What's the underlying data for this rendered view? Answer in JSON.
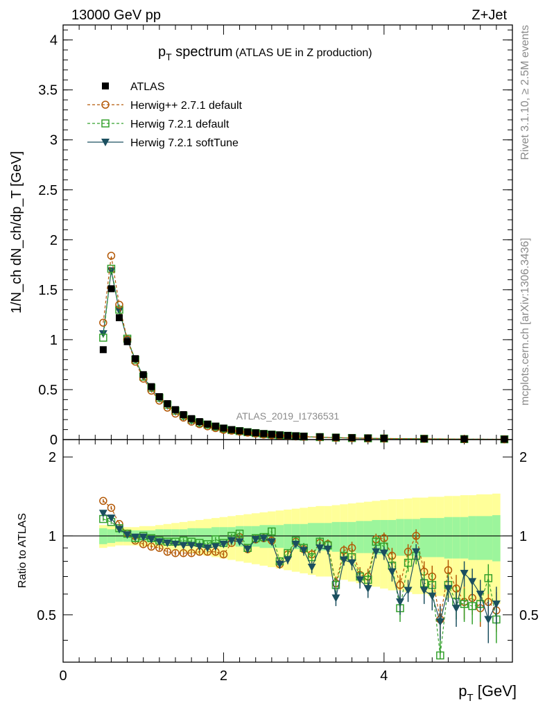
{
  "header": {
    "left": "13000 GeV pp",
    "right": "Z+Jet"
  },
  "side_labels": {
    "rivet": "Rivet 3.1.10, ≥ 2.5M events",
    "mcplots": "mcplots.cern.ch [arXiv:1306.3436]"
  },
  "colors": {
    "atlas": "#000000",
    "herwigpp": "#b35806",
    "herwig721_default": "#33a02c",
    "herwig721_soft": "#1b4f5f",
    "band_inner": "#9cf59c",
    "band_outer": "#ffff99"
  },
  "chart_data": [
    {
      "type": "scatter",
      "panel": "main",
      "title_main": "p",
      "title_sub": "T",
      "title_rest": " spectrum",
      "title_paren": "(ATLAS UE in Z production)",
      "analysis_id": "ATLAS_2019_I1736531",
      "ylabel": "1/N_ch dN_ch/dp_T [GeV]",
      "xlim": [
        0,
        5.6
      ],
      "ylim": [
        0,
        4.15
      ],
      "yticks": [
        "0",
        "0.5",
        "1",
        "1.5",
        "2",
        "2.5",
        "3",
        "3.5",
        "4"
      ],
      "legend_position": "top-left",
      "x": [
        0.5,
        0.6,
        0.7,
        0.8,
        0.9,
        1.0,
        1.1,
        1.2,
        1.3,
        1.4,
        1.5,
        1.6,
        1.7,
        1.8,
        1.9,
        2.0,
        2.1,
        2.2,
        2.3,
        2.4,
        2.5,
        2.6,
        2.7,
        2.8,
        2.9,
        3.0,
        3.2,
        3.4,
        3.6,
        3.8,
        4.0,
        4.5,
        5.0,
        5.5
      ],
      "series": [
        {
          "name": "ATLAS",
          "marker": "square-filled",
          "values": [
            0.9,
            1.51,
            1.22,
            0.98,
            0.81,
            0.65,
            0.53,
            0.43,
            0.36,
            0.3,
            0.25,
            0.21,
            0.18,
            0.155,
            0.135,
            0.115,
            0.1,
            0.088,
            0.077,
            0.068,
            0.06,
            0.053,
            0.047,
            0.042,
            0.038,
            0.034,
            0.028,
            0.023,
            0.019,
            0.016,
            0.013,
            0.009,
            0.006,
            0.004
          ]
        },
        {
          "name": "Herwig++ 2.7.1 default",
          "marker": "circle-open",
          "values": [
            1.17,
            1.84,
            1.35,
            1.0,
            0.78,
            0.61,
            0.49,
            0.39,
            0.32,
            0.26,
            0.22,
            0.18,
            0.155,
            0.133,
            0.115,
            0.098,
            0.09,
            0.08,
            0.07,
            0.06,
            0.05,
            0.045,
            0.04,
            0.035,
            0.032,
            0.029,
            0.024,
            0.019,
            0.016,
            0.013,
            0.011,
            0.008,
            0.005,
            0.003
          ]
        },
        {
          "name": "Herwig 7.2.1 default",
          "marker": "square-open",
          "values": [
            1.02,
            1.71,
            1.3,
            1.01,
            0.8,
            0.63,
            0.52,
            0.42,
            0.35,
            0.29,
            0.24,
            0.2,
            0.17,
            0.15,
            0.13,
            0.11,
            0.095,
            0.085,
            0.074,
            0.065,
            0.056,
            0.05,
            0.043,
            0.038,
            0.034,
            0.03,
            0.025,
            0.02,
            0.016,
            0.013,
            0.011,
            0.008,
            0.005,
            0.003
          ]
        },
        {
          "name": "Herwig 7.2.1 softTune",
          "marker": "triangle-down-filled",
          "values": [
            1.06,
            1.69,
            1.29,
            1.0,
            0.8,
            0.63,
            0.51,
            0.41,
            0.34,
            0.28,
            0.23,
            0.19,
            0.165,
            0.145,
            0.125,
            0.105,
            0.092,
            0.082,
            0.072,
            0.063,
            0.055,
            0.048,
            0.042,
            0.037,
            0.033,
            0.029,
            0.024,
            0.019,
            0.015,
            0.012,
            0.01,
            0.007,
            0.004,
            0.003
          ]
        }
      ]
    },
    {
      "type": "scatter",
      "panel": "ratio",
      "ylabel": "Ratio to ATLAS",
      "xlabel_main": "p",
      "xlabel_sub": "T",
      "xlabel_rest": " [GeV]",
      "xlim": [
        0,
        5.6
      ],
      "xticks": [
        "0",
        "2",
        "4"
      ],
      "ylim": [
        0.33,
        2.33
      ],
      "yticks": [
        "0.5",
        "1",
        "2"
      ],
      "x": [
        0.5,
        0.6,
        0.7,
        0.8,
        0.9,
        1.0,
        1.1,
        1.2,
        1.3,
        1.4,
        1.5,
        1.6,
        1.7,
        1.8,
        1.9,
        2.0,
        2.1,
        2.2,
        2.3,
        2.4,
        2.5,
        2.6,
        2.7,
        2.8,
        2.9,
        3.0,
        3.1,
        3.2,
        3.3,
        3.4,
        3.5,
        3.6,
        3.7,
        3.8,
        3.9,
        4.0,
        4.1,
        4.2,
        4.3,
        4.4,
        4.5,
        4.6,
        4.7,
        4.8,
        4.9,
        5.0,
        5.1,
        5.2,
        5.3,
        5.4
      ],
      "band_inner": [
        0.07,
        0.06,
        0.05,
        0.05,
        0.05,
        0.05,
        0.05,
        0.06,
        0.06,
        0.06,
        0.06,
        0.07,
        0.07,
        0.07,
        0.08,
        0.08,
        0.08,
        0.09,
        0.09,
        0.09,
        0.1,
        0.1,
        0.1,
        0.11,
        0.11,
        0.11,
        0.12,
        0.12,
        0.12,
        0.13,
        0.13,
        0.13,
        0.14,
        0.14,
        0.15,
        0.15,
        0.15,
        0.16,
        0.16,
        0.16,
        0.17,
        0.17,
        0.17,
        0.18,
        0.18,
        0.18,
        0.19,
        0.19,
        0.19,
        0.2
      ],
      "band_outer": [
        0.1,
        0.09,
        0.08,
        0.08,
        0.08,
        0.09,
        0.09,
        0.1,
        0.11,
        0.12,
        0.13,
        0.14,
        0.15,
        0.16,
        0.17,
        0.18,
        0.19,
        0.2,
        0.21,
        0.22,
        0.23,
        0.24,
        0.25,
        0.26,
        0.27,
        0.28,
        0.29,
        0.3,
        0.3,
        0.31,
        0.32,
        0.33,
        0.34,
        0.35,
        0.36,
        0.37,
        0.38,
        0.38,
        0.39,
        0.4,
        0.4,
        0.41,
        0.41,
        0.42,
        0.42,
        0.43,
        0.43,
        0.44,
        0.44,
        0.45
      ],
      "series": [
        {
          "name": "Herwig++ 2.7.1 default",
          "marker": "circle-open",
          "values": [
            1.36,
            1.28,
            1.11,
            1.02,
            0.96,
            0.93,
            0.91,
            0.9,
            0.87,
            0.86,
            0.86,
            0.86,
            0.87,
            0.87,
            0.87,
            0.85,
            0.94,
            0.99,
            0.89,
            0.97,
            0.98,
            0.96,
            0.78,
            0.85,
            0.95,
            0.89,
            0.85,
            0.94,
            0.93,
            0.66,
            0.88,
            0.9,
            0.71,
            0.7,
            0.97,
            0.98,
            0.84,
            0.65,
            0.87,
            1.0,
            0.73,
            0.7,
            0.48,
            0.74,
            0.63,
            0.56,
            0.58,
            0.53,
            0.56,
            0.52
          ],
          "errors": [
            0.02,
            0.02,
            0.02,
            0.02,
            0.02,
            0.02,
            0.02,
            0.02,
            0.02,
            0.02,
            0.02,
            0.02,
            0.02,
            0.02,
            0.02,
            0.02,
            0.02,
            0.02,
            0.03,
            0.03,
            0.03,
            0.03,
            0.03,
            0.03,
            0.03,
            0.04,
            0.04,
            0.04,
            0.04,
            0.04,
            0.04,
            0.05,
            0.05,
            0.05,
            0.05,
            0.05,
            0.06,
            0.06,
            0.06,
            0.06,
            0.07,
            0.07,
            0.07,
            0.07,
            0.08,
            0.08,
            0.08,
            0.08,
            0.09,
            0.09
          ]
        },
        {
          "name": "Herwig 7.2.1 default",
          "marker": "square-open",
          "values": [
            1.16,
            1.13,
            1.07,
            1.02,
            0.98,
            1.0,
            0.98,
            0.96,
            0.95,
            0.95,
            0.96,
            0.95,
            0.94,
            0.93,
            0.97,
            0.94,
            1.0,
            1.02,
            0.9,
            0.98,
            0.99,
            1.04,
            0.8,
            0.86,
            0.96,
            0.9,
            0.83,
            0.95,
            0.92,
            0.65,
            0.84,
            0.83,
            0.7,
            0.68,
            0.95,
            0.91,
            0.77,
            0.53,
            0.79,
            0.84,
            0.66,
            0.65,
            0.35,
            0.65,
            0.56,
            0.55,
            0.54,
            0.55,
            0.69,
            0.48
          ],
          "errors": [
            0.02,
            0.02,
            0.02,
            0.02,
            0.02,
            0.02,
            0.02,
            0.02,
            0.02,
            0.02,
            0.02,
            0.02,
            0.02,
            0.02,
            0.02,
            0.02,
            0.02,
            0.02,
            0.03,
            0.03,
            0.03,
            0.03,
            0.03,
            0.03,
            0.03,
            0.04,
            0.04,
            0.04,
            0.04,
            0.04,
            0.04,
            0.05,
            0.05,
            0.05,
            0.05,
            0.05,
            0.06,
            0.06,
            0.06,
            0.06,
            0.07,
            0.07,
            0.07,
            0.07,
            0.08,
            0.08,
            0.08,
            0.08,
            0.09,
            0.09
          ]
        },
        {
          "name": "Herwig 7.2.1 softTune",
          "marker": "triangle-down-filled",
          "values": [
            1.22,
            1.17,
            1.06,
            1.01,
            0.99,
            0.99,
            0.97,
            0.95,
            0.94,
            0.93,
            0.92,
            0.92,
            0.91,
            0.9,
            0.91,
            0.93,
            0.96,
            0.95,
            0.89,
            0.97,
            0.98,
            0.95,
            0.78,
            0.81,
            0.93,
            0.88,
            0.76,
            0.9,
            0.89,
            0.58,
            0.81,
            0.79,
            0.68,
            0.63,
            0.87,
            0.86,
            0.73,
            0.56,
            0.62,
            0.87,
            0.62,
            0.59,
            0.47,
            0.63,
            0.53,
            0.72,
            0.67,
            0.6,
            0.48,
            0.55
          ],
          "errors": [
            0.02,
            0.02,
            0.02,
            0.02,
            0.02,
            0.02,
            0.02,
            0.02,
            0.02,
            0.02,
            0.02,
            0.02,
            0.02,
            0.02,
            0.02,
            0.02,
            0.02,
            0.02,
            0.03,
            0.03,
            0.03,
            0.03,
            0.03,
            0.03,
            0.03,
            0.04,
            0.04,
            0.04,
            0.04,
            0.04,
            0.04,
            0.05,
            0.05,
            0.05,
            0.05,
            0.05,
            0.06,
            0.06,
            0.06,
            0.06,
            0.07,
            0.07,
            0.07,
            0.07,
            0.08,
            0.08,
            0.08,
            0.08,
            0.09,
            0.09
          ]
        }
      ]
    }
  ]
}
